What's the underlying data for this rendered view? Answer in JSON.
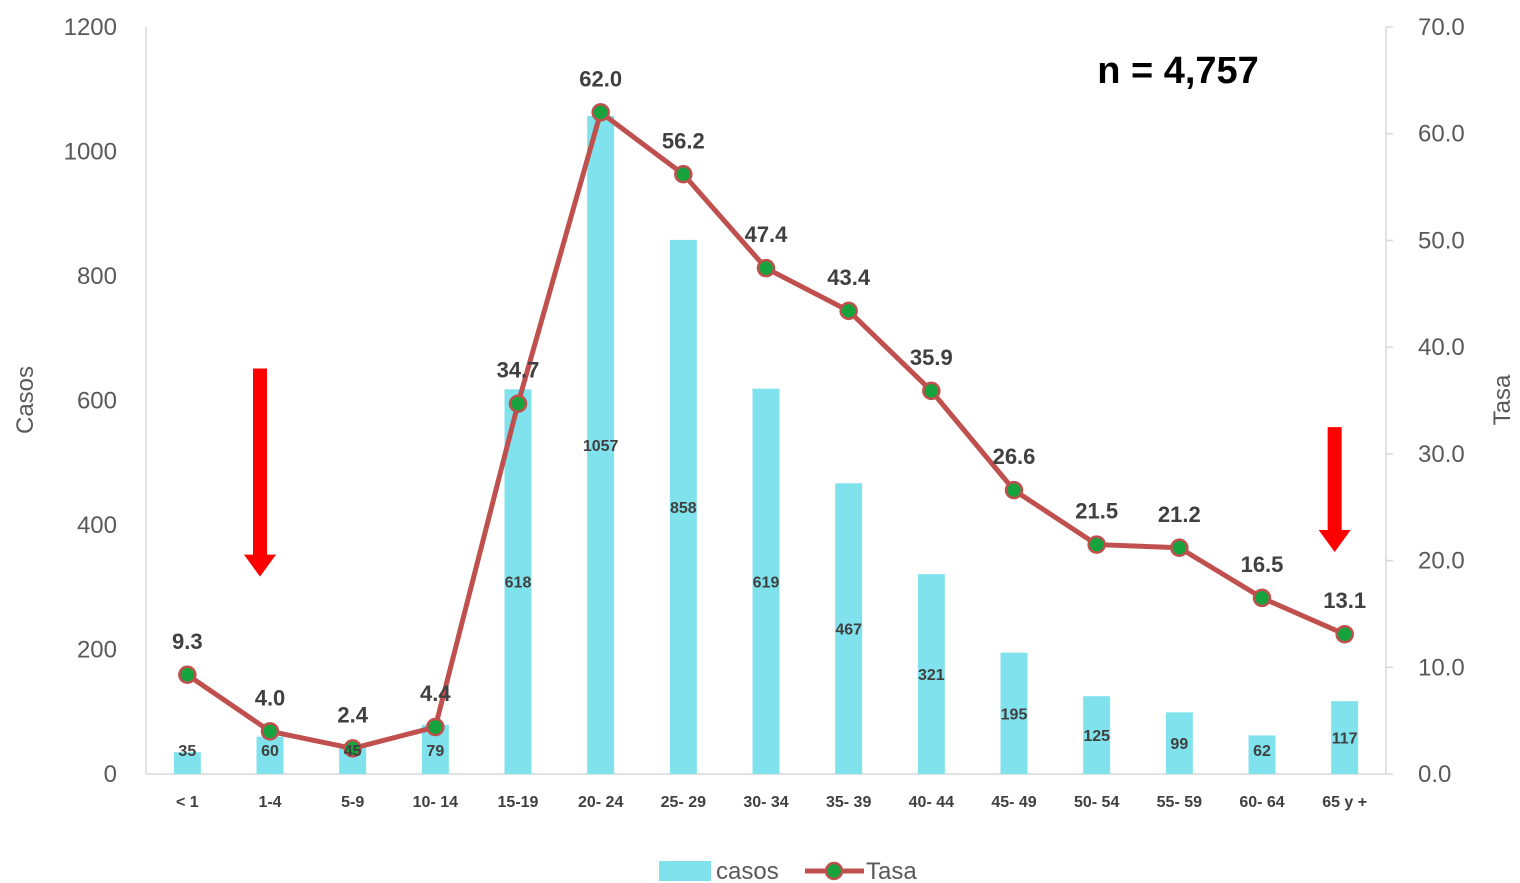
{
  "chart_data": {
    "type": "bar",
    "annotation": "n = 4,757",
    "categories": [
      "< 1",
      "1-4",
      "5-9",
      "10- 14",
      "15-19",
      "20- 24",
      "25- 29",
      "30- 34",
      "35- 39",
      "40- 44",
      "45- 49",
      "50- 54",
      "55- 59",
      "60- 64",
      "65 y +"
    ],
    "series": [
      {
        "name": "casos",
        "type": "bar",
        "axis": "left",
        "values": [
          35,
          60,
          45,
          79,
          618,
          1057,
          858,
          619,
          467,
          321,
          195,
          125,
          99,
          62,
          117
        ]
      },
      {
        "name": "Tasa",
        "type": "line",
        "axis": "right",
        "values": [
          9.3,
          4.0,
          2.4,
          4.4,
          34.7,
          62.0,
          56.2,
          47.4,
          43.4,
          35.9,
          26.6,
          21.5,
          21.2,
          16.5,
          13.1
        ]
      }
    ],
    "ylabel": "Casos",
    "ylabel_right": "Tasa",
    "ylim": [
      0,
      1200
    ],
    "ylim_right": [
      0,
      70
    ],
    "yticks": [
      "0",
      "200",
      "400",
      "600",
      "800",
      "1000",
      "1200"
    ],
    "yticks_right": [
      "0.0",
      "10.0",
      "20.0",
      "30.0",
      "40.0",
      "50.0",
      "60.0",
      "70.0"
    ],
    "legend": "bottom",
    "grid": false,
    "arrows": [
      {
        "category": "1-4",
        "tasa_from": 38,
        "tasa_to": 18.5
      },
      {
        "category": "65 y +",
        "tasa_from": 32.5,
        "tasa_to": 20.8
      }
    ],
    "colors": {
      "bar": "#80E2EC",
      "line": "#C0504D",
      "marker": "#16A33D",
      "arrow": "#FF0000"
    }
  }
}
